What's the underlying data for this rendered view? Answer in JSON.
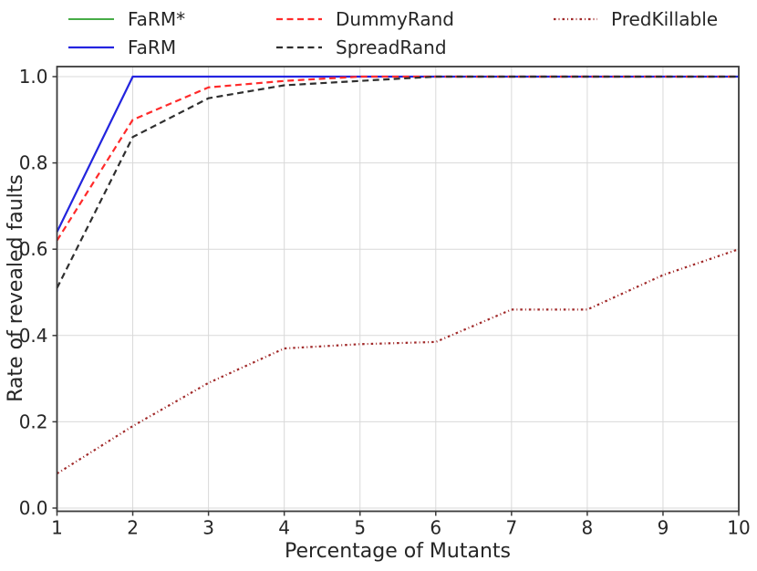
{
  "figure": {
    "background": "#ffffff",
    "frame_color": "#3b3b3b",
    "grid_color": "#d9d9d9",
    "text_color": "#262626"
  },
  "chart_data": {
    "type": "line",
    "title": "",
    "xlabel": "Percentage of Mutants",
    "ylabel": "Rate of revealed faults",
    "x": [
      1,
      2,
      3,
      4,
      5,
      6,
      7,
      8,
      9,
      10
    ],
    "xlim": [
      1,
      10
    ],
    "ylim": [
      -0.007,
      1.023
    ],
    "xtick_labels": [
      "1",
      "2",
      "3",
      "4",
      "5",
      "6",
      "7",
      "8",
      "9",
      "10"
    ],
    "yticks": [
      0.0,
      0.2,
      0.4,
      0.6,
      0.8,
      1.0
    ],
    "ytick_labels": [
      "0.0",
      "0.2",
      "0.4",
      "0.6",
      "0.8",
      "1.0"
    ],
    "grid": true,
    "legend_position": "top",
    "series": [
      {
        "name": "FaRM*",
        "color": "#2ca02c",
        "style": "solid",
        "width": 1.8,
        "values": [
          0.64,
          1.0,
          1.0,
          1.0,
          1.0,
          1.0,
          1.0,
          1.0,
          1.0,
          1.0
        ]
      },
      {
        "name": "FaRM",
        "color": "#2424e0",
        "style": "solid",
        "width": 2.2,
        "values": [
          0.64,
          1.0,
          1.0,
          1.0,
          1.0,
          1.0,
          1.0,
          1.0,
          1.0,
          1.0
        ]
      },
      {
        "name": "DummyRand",
        "color": "#ff2a2a",
        "style": "dashed",
        "width": 2.2,
        "values": [
          0.62,
          0.9,
          0.975,
          0.99,
          1.0,
          1.0,
          1.0,
          1.0,
          1.0,
          1.0
        ]
      },
      {
        "name": "SpreadRand",
        "color": "#2f2f2f",
        "style": "dashed",
        "width": 2.2,
        "values": [
          0.51,
          0.86,
          0.95,
          0.98,
          0.99,
          1.0,
          1.0,
          1.0,
          1.0,
          1.0
        ]
      },
      {
        "name": "PredKillable",
        "color": "#a02828",
        "style": "dashdot",
        "width": 2.2,
        "values": [
          0.08,
          0.19,
          0.29,
          0.37,
          0.38,
          0.385,
          0.46,
          0.46,
          0.54,
          0.6
        ]
      }
    ],
    "legend_columns": [
      [
        "FaRM*",
        "FaRM"
      ],
      [
        "DummyRand",
        "SpreadRand"
      ],
      [
        "PredKillable"
      ]
    ]
  }
}
